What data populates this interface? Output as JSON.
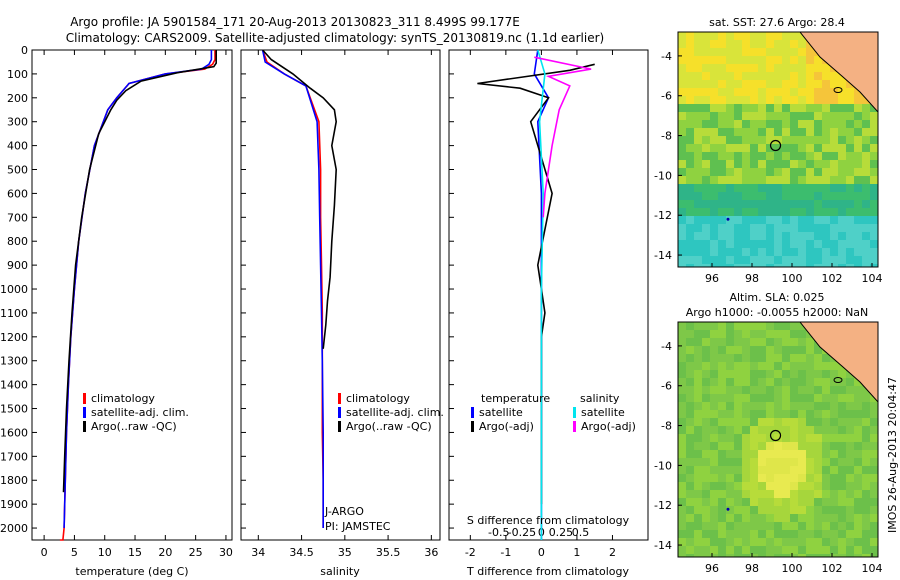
{
  "header": {
    "line1": "Argo profile: JA 5901584_171 20-Aug-2013 20130823_311 8.499S 99.177E",
    "line2": "Climatology: CARS2009. Satellite-adjusted climatology: synTS_20130819.nc (1.1d earlier)"
  },
  "colors": {
    "climatology": "#ff0000",
    "satellite": "#0000ff",
    "argo": "#000000",
    "salinity_satellite": "#00e5ee",
    "salinity_argo": "#ff00ff"
  },
  "chart_data": [
    {
      "type": "line",
      "xlabel": "temperature (deg C)",
      "ylabel": "",
      "xlim": [
        -2,
        31
      ],
      "ylim": [
        2050,
        0
      ],
      "xticks": [
        0,
        5,
        10,
        15,
        20,
        25,
        30
      ],
      "yticks": [
        0,
        100,
        200,
        300,
        400,
        500,
        600,
        700,
        800,
        900,
        1000,
        1100,
        1200,
        1300,
        1400,
        1500,
        1600,
        1700,
        1800,
        1900,
        2000
      ],
      "legend": [
        "climatology",
        "satellite-adj. clim.",
        "Argo(..raw -QC)"
      ],
      "series": [
        {
          "name": "climatology",
          "color": "#ff0000",
          "x": [
            28.2,
            28.2,
            27.8,
            26.5,
            20,
            14,
            12,
            10.5,
            8.3,
            6.8,
            5.7,
            5,
            4.4,
            4,
            3.7,
            3.5,
            3.3,
            3.1,
            3,
            2.85,
            2.7,
            2.6
          ],
          "y": [
            0,
            40,
            60,
            80,
            100,
            140,
            200,
            250,
            400,
            600,
            800,
            1000,
            1200,
            1400,
            1600,
            1800,
            2000,
            2050,
            2050,
            2050,
            2050,
            2050
          ]
        },
        {
          "name": "satellite-adj. clim.",
          "color": "#0000ff",
          "x": [
            27.6,
            27.6,
            27.2,
            26,
            20,
            14,
            12,
            10.5,
            8.3,
            6.8,
            5.7,
            5,
            4.4,
            4,
            3.7,
            3.5,
            3.3
          ],
          "y": [
            0,
            40,
            60,
            80,
            100,
            140,
            200,
            250,
            400,
            600,
            800,
            1000,
            1200,
            1400,
            1600,
            1800,
            2000
          ]
        },
        {
          "name": "Argo(..raw -QC)",
          "color": "#000000",
          "x": [
            28.4,
            28.4,
            28,
            22,
            16,
            13.5,
            12,
            11,
            9,
            7.5,
            6.2,
            5.2,
            4.6,
            4.1,
            3.7,
            3.4,
            3.2
          ],
          "y": [
            0,
            55,
            70,
            95,
            130,
            170,
            210,
            250,
            350,
            500,
            700,
            900,
            1100,
            1300,
            1500,
            1700,
            1850
          ]
        }
      ]
    },
    {
      "type": "line",
      "xlabel": "salinity",
      "xlim": [
        33.8,
        36.1
      ],
      "ylim": [
        2050,
        0
      ],
      "xticks": [
        34,
        34.5,
        35,
        35.5,
        36
      ],
      "legend": [
        "climatology",
        "satellite-adj. clim.",
        "Argo(..raw -QC)"
      ],
      "annotations": [
        "J-ARGO",
        "PI: JAMSTEC"
      ],
      "series": [
        {
          "name": "climatology",
          "color": "#ff0000",
          "x": [
            34.05,
            34.1,
            34.3,
            34.55,
            34.7,
            34.72,
            34.72,
            34.73,
            34.74,
            34.74,
            34.74,
            34.75,
            34.75
          ],
          "y": [
            0,
            50,
            100,
            150,
            300,
            500,
            700,
            900,
            1100,
            1300,
            1600,
            1800,
            2000
          ]
        },
        {
          "name": "satellite-adj. clim.",
          "color": "#0000ff",
          "x": [
            34.05,
            34.08,
            34.3,
            34.55,
            34.68,
            34.7,
            34.71,
            34.72,
            34.73,
            34.74,
            34.75,
            34.75
          ],
          "y": [
            0,
            50,
            100,
            150,
            300,
            500,
            700,
            900,
            1100,
            1300,
            1600,
            2000
          ]
        },
        {
          "name": "Argo(..raw -QC)",
          "color": "#000000",
          "x": [
            34.05,
            34.15,
            34.4,
            34.6,
            34.75,
            34.88,
            34.9,
            34.85,
            34.9,
            34.88,
            34.85,
            34.83,
            34.8,
            34.78,
            34.75
          ],
          "y": [
            0,
            40,
            100,
            160,
            200,
            250,
            300,
            400,
            500,
            650,
            800,
            950,
            1050,
            1150,
            1250
          ]
        }
      ]
    },
    {
      "type": "line",
      "xlabel": "T difference from climatology",
      "xlabel2": "S difference from climatology",
      "xlim": [
        -2.6,
        3
      ],
      "ylim": [
        2050,
        0
      ],
      "xticks": [
        -2,
        -1,
        0,
        1,
        2
      ],
      "xticks2": [
        "-0.5",
        "-0.25",
        "0",
        "0.25",
        "0.5"
      ],
      "legend_headers": [
        "temperature",
        "salinity"
      ],
      "legend": [
        "satellite",
        "Argo(-adj)",
        "satellite",
        "Argo(-adj)"
      ],
      "series": [
        {
          "name": "temperature satellite",
          "color": "#0000ff",
          "x": [
            -0.1,
            -0.2,
            0.2,
            -0.1,
            0,
            0,
            0,
            0
          ],
          "y": [
            0,
            100,
            200,
            300,
            600,
            1000,
            1500,
            2050
          ]
        },
        {
          "name": "temperature Argo(-adj)",
          "color": "#000000",
          "x": [
            1.5,
            0.8,
            -1.8,
            -0.6,
            0.2,
            -0.3,
            0.3,
            -0.1,
            0,
            0.1,
            0,
            0
          ],
          "y": [
            60,
            85,
            140,
            160,
            200,
            300,
            600,
            900,
            1000,
            1100,
            1200,
            1900
          ]
        },
        {
          "name": "salinity satellite",
          "color": "#00e5ee",
          "x": [
            -0.1,
            0.1,
            -0.05,
            0.05,
            0,
            0,
            0
          ],
          "y": [
            0,
            100,
            300,
            600,
            1000,
            1500,
            2050
          ]
        },
        {
          "name": "salinity Argo(-adj)",
          "color": "#ff00ff",
          "x": [
            -0.2,
            1.4,
            0.2,
            0.8,
            0.5,
            0.3,
            0.2,
            0.1,
            0.05
          ],
          "y": [
            30,
            80,
            110,
            150,
            250,
            400,
            500,
            600,
            700
          ]
        }
      ]
    },
    {
      "type": "heatmap",
      "title": "sat. SST: 27.6 Argo: 28.4",
      "xlim": [
        94.3,
        104.3
      ],
      "ylim": [
        -14.6,
        -2.8
      ],
      "xticks": [
        96,
        98,
        100,
        102,
        104
      ],
      "yticks": [
        -4,
        -6,
        -8,
        -10,
        -12,
        -14
      ],
      "marker": {
        "lon": 99.177,
        "lat": -8.499
      }
    },
    {
      "type": "heatmap",
      "title": "Altim. SLA: 0.025",
      "subtitle": "Argo h1000: -0.0055 h2000: NaN",
      "xlim": [
        94.3,
        104.3
      ],
      "ylim": [
        -14.6,
        -2.8
      ],
      "xticks": [
        96,
        98,
        100,
        102,
        104
      ],
      "yticks": [
        -4,
        -6,
        -8,
        -10,
        -12,
        -14
      ],
      "marker": {
        "lon": 99.177,
        "lat": -8.499
      }
    }
  ],
  "footer": {
    "credit": "IMOS 26-Aug-2013 20:04:47"
  }
}
